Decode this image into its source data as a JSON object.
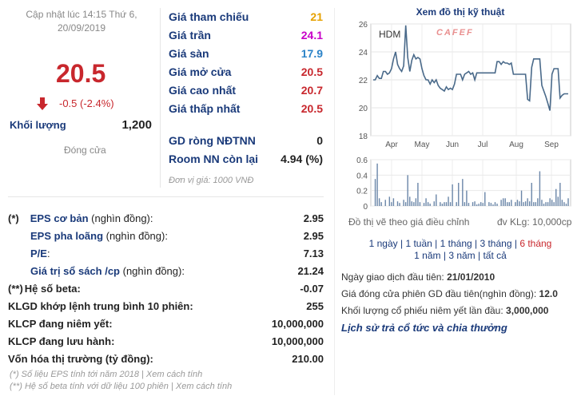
{
  "left": {
    "update_text": "Cập nhật lúc 14:15 Thứ 6, 20/09/2019",
    "price": "20.5",
    "change": "-0.5 (-2.4%)",
    "volume_label": "Khối lượng",
    "volume_value": "1,200",
    "status": "Đóng cửa",
    "arrow_color": "#c8272d"
  },
  "stats": [
    {
      "label": "Giá tham chiếu",
      "value": "21",
      "color": "#e6a100"
    },
    {
      "label": "Giá trần",
      "value": "24.1",
      "color": "#c800c8"
    },
    {
      "label": "Giá sàn",
      "value": "17.9",
      "color": "#2b83c8"
    },
    {
      "label": "Giá mở cửa",
      "value": "20.5",
      "color": "#c8272d"
    },
    {
      "label": "Giá cao nhất",
      "value": "20.7",
      "color": "#c8272d"
    },
    {
      "label": "Giá thấp nhất",
      "value": "20.5",
      "color": "#c8272d"
    }
  ],
  "room": [
    {
      "label": "GD ròng NĐTNN",
      "value": "0"
    },
    {
      "label": "Room NN còn lại",
      "value": "4.94 (%)"
    }
  ],
  "unit_note": "Đơn vị giá: 1000 VNĐ",
  "financials": [
    {
      "prefix": "(*)",
      "label": "EPS cơ bản",
      "sub": " (nghìn đồng):",
      "value": "2.95",
      "indent": 0
    },
    {
      "prefix": "",
      "label": "EPS pha loãng",
      "sub": " (nghìn đồng):",
      "value": "2.95",
      "indent": 1
    },
    {
      "prefix": "",
      "label": "P/E",
      "sub": ":",
      "value": "7.13",
      "indent": 1
    },
    {
      "prefix": "",
      "label": "Giá trị sổ sách /cp",
      "sub": " (nghìn đồng):",
      "value": "21.24",
      "indent": 1
    },
    {
      "prefix": "(**)",
      "label": "Hệ số beta",
      "sub": ":",
      "value": "-0.07",
      "indent": 0
    },
    {
      "prefix": "",
      "label": "KLGD khớp lệnh trung bình 10 phiên",
      "sub": ":",
      "value": "255",
      "indent": 0
    },
    {
      "prefix": "",
      "label": "KLCP đang niêm yết",
      "sub": ":",
      "value": "10,000,000",
      "indent": 0
    },
    {
      "prefix": "",
      "label": "KLCP đang lưu hành",
      "sub": ":",
      "value": "10,000,000",
      "indent": 0
    },
    {
      "prefix": "",
      "label": "Vốn hóa thị trường",
      "sub": " (tỷ đồng):",
      "value": "210.00",
      "indent": 0
    }
  ],
  "notes": {
    "eps_note": "(*) Số liệu EPS tính tới năm 2018 | Xem cách tính",
    "beta_note": "(**) Hệ số beta tính với dữ liệu 100 phiên | Xem cách tính"
  },
  "chart": {
    "title": "Xem đồ thị kỹ thuật",
    "ticker": "HDM",
    "watermark": "CAFEF",
    "adjust_note": "Đồ thị vẽ theo giá điều chỉnh",
    "volume_unit": "đv KLg: 10,000cp",
    "line_color": "#4a6a8a",
    "volume_color": "#6a86a8"
  },
  "chart_data": {
    "type": "line",
    "price_ylim": [
      18,
      26
    ],
    "price_yticks": [
      "26",
      "24",
      "22",
      "20",
      "18"
    ],
    "volume_ylim": [
      0,
      0.6
    ],
    "volume_yticks": [
      "0.6",
      "0.4",
      "0.2",
      "0"
    ],
    "x_month_labels": [
      "Apr",
      "May",
      "Jun",
      "Jul",
      "Aug",
      "Sep"
    ],
    "price": [
      22.0,
      22.0,
      22.3,
      22.1,
      22.1,
      22.6,
      22.6,
      22.4,
      22.5,
      22.8,
      23.5,
      24.0,
      23.1,
      22.8,
      22.6,
      23.0,
      25.9,
      23.6,
      22.6,
      23.4,
      23.8,
      23.5,
      23.6,
      23.5,
      22.8,
      22.3,
      22.0,
      22.0,
      21.7,
      22.0,
      21.8,
      22.0,
      21.6,
      21.4,
      21.3,
      21.2,
      21.5,
      21.3,
      21.4,
      21.3,
      21.7,
      22.4,
      22.4,
      22.4,
      22.0,
      22.4,
      22.5,
      22.6,
      22.4,
      22.5,
      22.0,
      22.5,
      22.5,
      22.5,
      22.5,
      22.5,
      22.5,
      22.5,
      22.5,
      22.5,
      22.5,
      23.3,
      23.3,
      23.1,
      23.3,
      23.2,
      23.2,
      23.1,
      23.2,
      22.4,
      22.4,
      22.4,
      22.4,
      22.4,
      22.4,
      22.4,
      20.6,
      20.5,
      22.9,
      23.5,
      23.5,
      23.5,
      23.5,
      21.6,
      21.2,
      20.8,
      20.3,
      19.8,
      22.4,
      22.8,
      22.8,
      22.8,
      20.7,
      20.9,
      21.0,
      21.0,
      21.0
    ],
    "volume": [
      0,
      0.35,
      0.55,
      0.1,
      0.05,
      0,
      0.08,
      0,
      0.12,
      0.05,
      0.1,
      0,
      0.06,
      0.04,
      0,
      0.08,
      0.05,
      0.4,
      0.12,
      0.06,
      0.05,
      0.1,
      0.3,
      0.05,
      0,
      0.04,
      0.1,
      0.05,
      0.03,
      0,
      0.06,
      0.15,
      0,
      0.05,
      0.03,
      0.05,
      0.05,
      0.12,
      0.05,
      0.28,
      0,
      0.05,
      0.3,
      0,
      0.35,
      0.05,
      0.2,
      0.04,
      0,
      0.05,
      0.06,
      0.02,
      0.03,
      0.05,
      0.04,
      0.18,
      0,
      0.05,
      0.04,
      0.02,
      0.05,
      0.03,
      0,
      0.08,
      0.1,
      0.1,
      0.05,
      0.05,
      0.08,
      0,
      0.05,
      0.08,
      0.06,
      0.2,
      0.05,
      0.06,
      0.1,
      0.06,
      0.3,
      0.05,
      0.05,
      0.1,
      0.45,
      0.08,
      0.03,
      0.05,
      0.05,
      0.1,
      0.08,
      0.05,
      0.22,
      0.12,
      0.3,
      0.08,
      0.05,
      0.03,
      0.1
    ]
  },
  "periods": {
    "row1": [
      "1 ngày",
      "1 tuần",
      "1 tháng",
      "3 tháng",
      "6 tháng"
    ],
    "row2": [
      "1 năm",
      "3 năm",
      "tất cả"
    ],
    "selected": "6 tháng"
  },
  "info": {
    "first_trade_label": "Ngày giao dịch đầu tiên: ",
    "first_trade_value": "21/01/2010",
    "first_close_label": "Giá đóng cửa phiên GD đầu tiên(nghìn đồng): ",
    "first_close_value": "12.0",
    "first_volume_label": "Khối lượng cổ phiếu niêm yết lần đầu: ",
    "first_volume_value": "3,000,000",
    "history_link": "Lịch sử trả cổ tức và chia thưởng"
  }
}
